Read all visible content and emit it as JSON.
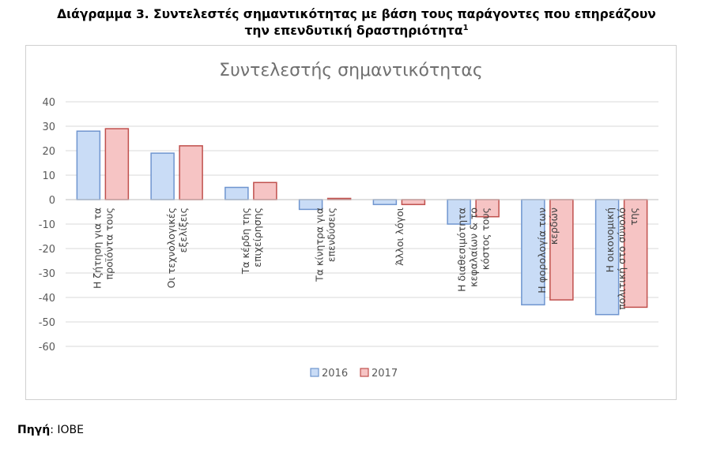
{
  "document": {
    "title_line1": "Διάγραμμα 3. Συντελεστές σημαντικότητας με βάση τους παράγοντες που επηρεάζουν",
    "title_line2": "την επενδυτική δραστηριότητα",
    "title_footnote": "1",
    "source_label": "Πηγή",
    "source_value": ": IOBE"
  },
  "chart_data": {
    "type": "bar",
    "title": "Συντελεστής σημαντικότητας",
    "categories": [
      [
        "Η ζήτηση για τα",
        "προϊόντα τους"
      ],
      [
        "Οι τεχνολογικές",
        "εξελίξεις"
      ],
      [
        "Τα κέρδη της",
        "επιχείρησης"
      ],
      [
        "Τα κίνητρα για",
        "επενδύσεις"
      ],
      [
        "Άλλοι λόγοι"
      ],
      [
        "Η διαθεσιμότητα",
        "κεφαλαίων & το",
        "κόστος τους"
      ],
      [
        "Η φορολογία των",
        "κερδών"
      ],
      [
        "Η οικονομική",
        "πολιτική στο σύνολό",
        "της"
      ]
    ],
    "series": [
      {
        "name": "2016",
        "values": [
          28,
          19,
          5,
          -4,
          -2,
          -10,
          -43,
          -47
        ],
        "fill": "#c9dcf6",
        "stroke": "#6f95cf"
      },
      {
        "name": "2017",
        "values": [
          29,
          22,
          7,
          0.5,
          -2,
          -7,
          -41,
          -44
        ],
        "fill": "#f6c4c4",
        "stroke": "#c0504d"
      }
    ],
    "ylim": [
      -60,
      40
    ],
    "yticks": [
      40,
      30,
      20,
      10,
      0,
      -10,
      -20,
      -30,
      -40,
      -50,
      -60
    ],
    "grid": true,
    "legend_position": "bottom"
  }
}
